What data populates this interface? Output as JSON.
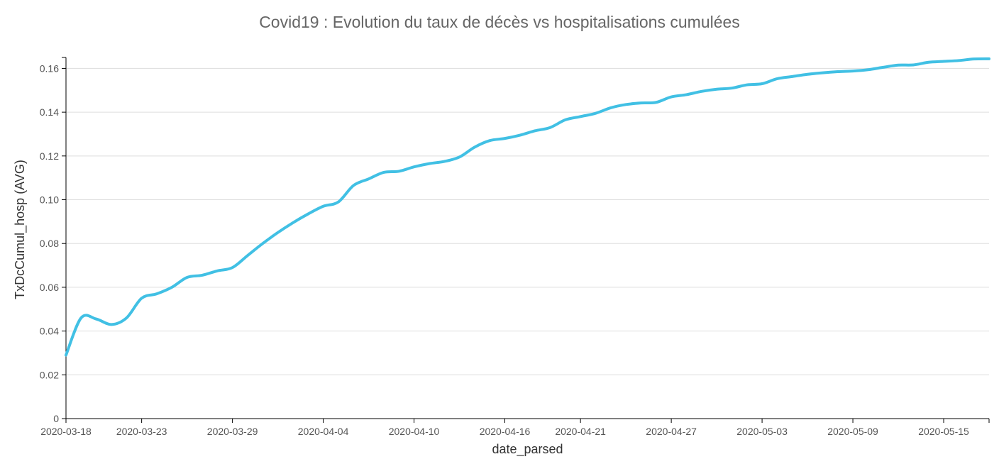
{
  "chart_data": {
    "type": "line",
    "title": "Covid19 : Evolution du taux de décès vs hospitalisations cumulées",
    "xlabel": "date_parsed",
    "ylabel": "TxDcCumul_hosp (AVG)",
    "ylim": [
      0,
      0.165
    ],
    "yticks": [
      "0",
      "0.02",
      "0.04",
      "0.06",
      "0.08",
      "0.10",
      "0.12",
      "0.14",
      "0.16"
    ],
    "xticks": [
      "2020-03-18",
      "2020-03-23",
      "2020-03-29",
      "2020-04-04",
      "2020-04-10",
      "2020-04-16",
      "2020-04-21",
      "2020-04-27",
      "2020-05-03",
      "2020-05-09",
      "2020-05-15"
    ],
    "grid": true,
    "line_color": "#41c0e4",
    "x": [
      "2020-03-18",
      "2020-03-19",
      "2020-03-20",
      "2020-03-21",
      "2020-03-22",
      "2020-03-23",
      "2020-03-24",
      "2020-03-25",
      "2020-03-26",
      "2020-03-27",
      "2020-03-28",
      "2020-03-29",
      "2020-03-30",
      "2020-03-31",
      "2020-04-01",
      "2020-04-02",
      "2020-04-03",
      "2020-04-04",
      "2020-04-05",
      "2020-04-06",
      "2020-04-07",
      "2020-04-08",
      "2020-04-09",
      "2020-04-10",
      "2020-04-11",
      "2020-04-12",
      "2020-04-13",
      "2020-04-14",
      "2020-04-15",
      "2020-04-16",
      "2020-04-17",
      "2020-04-18",
      "2020-04-19",
      "2020-04-20",
      "2020-04-21",
      "2020-04-22",
      "2020-04-23",
      "2020-04-24",
      "2020-04-25",
      "2020-04-26",
      "2020-04-27",
      "2020-04-28",
      "2020-04-29",
      "2020-04-30",
      "2020-05-01",
      "2020-05-02",
      "2020-05-03",
      "2020-05-04",
      "2020-05-05",
      "2020-05-06",
      "2020-05-07",
      "2020-05-08",
      "2020-05-09",
      "2020-05-10",
      "2020-05-11",
      "2020-05-12",
      "2020-05-13",
      "2020-05-14",
      "2020-05-15",
      "2020-05-16",
      "2020-05-17",
      "2020-05-18"
    ],
    "values": [
      0.029,
      0.046,
      0.0455,
      0.043,
      0.046,
      0.055,
      0.057,
      0.06,
      0.0645,
      0.0655,
      0.0675,
      0.069,
      0.0745,
      0.08,
      0.085,
      0.0895,
      0.0935,
      0.097,
      0.099,
      0.1065,
      0.1095,
      0.1125,
      0.113,
      0.115,
      0.1165,
      0.1175,
      0.1195,
      0.124,
      0.127,
      0.128,
      0.1295,
      0.1315,
      0.133,
      0.1365,
      0.138,
      0.1395,
      0.142,
      0.1435,
      0.1442,
      0.1445,
      0.147,
      0.148,
      0.1495,
      0.1505,
      0.151,
      0.1525,
      0.153,
      0.1553,
      0.1563,
      0.1573,
      0.158,
      0.1585,
      0.1588,
      0.1594,
      0.1605,
      0.1615,
      0.1616,
      0.1628,
      0.1632,
      0.1636,
      0.1643,
      0.1644
    ]
  }
}
